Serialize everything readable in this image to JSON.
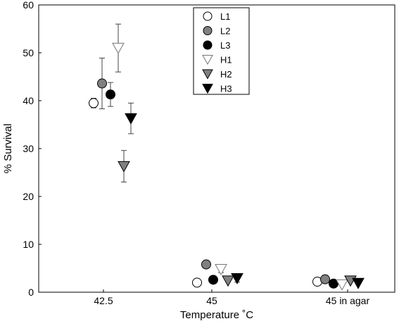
{
  "chart_data": {
    "type": "scatter",
    "title": "",
    "xlabel": "Temperature ˚C",
    "ylabel": "% Survival",
    "ylim": [
      0,
      60
    ],
    "yticks": [
      0,
      10,
      20,
      30,
      40,
      50,
      60
    ],
    "categories": [
      "42.5",
      "45",
      "45 in agar"
    ],
    "grid": false,
    "legend_position": "top-center",
    "series": [
      {
        "name": "L1",
        "marker": "circle",
        "fill": "#ffffff",
        "values": [
          39.5,
          2.0,
          2.2
        ],
        "error": [
          1.0,
          0,
          0
        ]
      },
      {
        "name": "L2",
        "marker": "circle",
        "fill": "#808080",
        "values": [
          43.6,
          5.8,
          2.7
        ],
        "error": [
          5.3,
          0,
          0
        ]
      },
      {
        "name": "L3",
        "marker": "circle",
        "fill": "#000000",
        "values": [
          41.3,
          2.6,
          1.8
        ],
        "error": [
          2.5,
          0,
          0
        ]
      },
      {
        "name": "H1",
        "marker": "triangle-down",
        "fill": "#ffffff",
        "values": [
          51.0,
          4.8,
          1.6
        ],
        "error": [
          5.0,
          0.7,
          0
        ]
      },
      {
        "name": "H2",
        "marker": "triangle-down",
        "fill": "#808080",
        "values": [
          26.3,
          2.4,
          2.4
        ],
        "error": [
          3.3,
          0,
          0
        ]
      },
      {
        "name": "H3",
        "marker": "triangle-down",
        "fill": "#000000",
        "values": [
          36.3,
          2.9,
          1.9
        ],
        "error": [
          3.2,
          0.8,
          0
        ]
      }
    ]
  }
}
